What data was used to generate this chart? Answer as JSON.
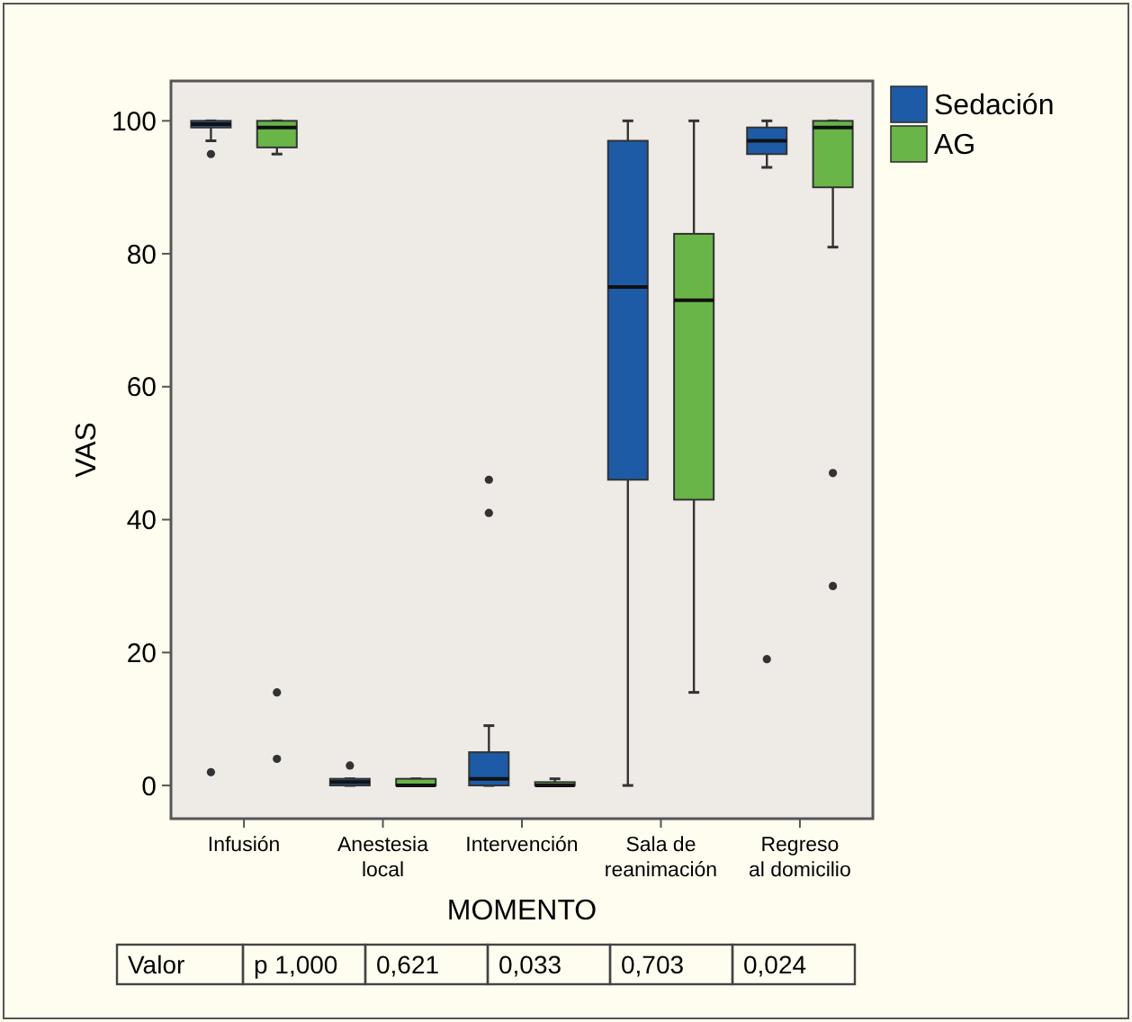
{
  "chart_data": {
    "type": "box",
    "xlabel": "MOMENTO",
    "ylabel": "VAS",
    "categories": [
      "Infusión",
      "Anestesia\nlocal",
      "Intervención",
      "Sala de\nreanimación",
      "Regreso\nal domicilio"
    ],
    "ylim": [
      -5,
      106
    ],
    "yticks": [
      0,
      20,
      40,
      60,
      80,
      100
    ],
    "grid": false,
    "legend": "top right",
    "series": [
      {
        "name": "Sedación",
        "color": "#1d5ba6",
        "boxes": [
          {
            "low": 97,
            "q1": 99,
            "median": 99.5,
            "q3": 100,
            "high": 100,
            "outliers": [
              95,
              2
            ]
          },
          {
            "low": 0,
            "q1": 0,
            "median": 0.5,
            "q3": 1,
            "high": 1,
            "outliers": [
              3
            ]
          },
          {
            "low": 0,
            "q1": 0,
            "median": 1,
            "q3": 5,
            "high": 9,
            "outliers": [
              41,
              46
            ]
          },
          {
            "low": 0,
            "q1": 46,
            "median": 75,
            "q3": 97,
            "high": 100
          },
          {
            "low": 93,
            "q1": 95,
            "median": 97,
            "q3": 99,
            "high": 100,
            "outliers": [
              19
            ]
          }
        ]
      },
      {
        "name": "AG",
        "color": "#69b548",
        "boxes": [
          {
            "low": 95,
            "q1": 96,
            "median": 99,
            "q3": 100,
            "high": 100,
            "outliers": [
              14,
              4
            ]
          },
          {
            "low": 0,
            "q1": 0,
            "median": 0,
            "q3": 1,
            "high": 1
          },
          {
            "low": 0,
            "q1": 0,
            "median": 0,
            "q3": 0.5,
            "high": 1
          },
          {
            "low": 14,
            "q1": 43,
            "median": 73,
            "q3": 83,
            "high": 100
          },
          {
            "low": 81,
            "q1": 90,
            "median": 99,
            "q3": 100,
            "high": 100,
            "outliers": [
              47,
              30
            ]
          }
        ]
      }
    ],
    "annotations": [
      "Valor",
      "p 1,000",
      "0,621",
      "0,033",
      "0,703",
      "0,024"
    ]
  }
}
